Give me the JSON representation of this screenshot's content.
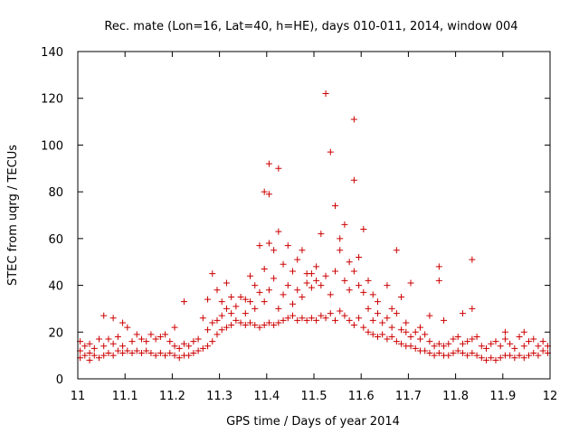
{
  "chart_data": {
    "type": "scatter",
    "title": "Rec. mate (Lon=16, Lat=40, h=HE), days 010-011, 2014, window 004",
    "xlabel": "GPS time / Days of year 2014",
    "ylabel": "STEC from uqrg / TECUs",
    "xlim": [
      11,
      12
    ],
    "ylim": [
      0,
      140
    ],
    "x_ticks": [
      "11",
      "11.1",
      "11.2",
      "11.3",
      "11.4",
      "11.5",
      "11.6",
      "11.7",
      "11.8",
      "11.9",
      "12"
    ],
    "y_ticks": [
      "0",
      "20",
      "40",
      "60",
      "80",
      "100",
      "120",
      "140"
    ],
    "marker": "+",
    "marker_color": "#cc0000",
    "grid": false,
    "legend": "none",
    "series": [
      {
        "name": "STEC",
        "points": [
          [
            11.005,
            9
          ],
          [
            11.005,
            12
          ],
          [
            11.005,
            16
          ],
          [
            11.015,
            10
          ],
          [
            11.015,
            14
          ],
          [
            11.025,
            8
          ],
          [
            11.025,
            11
          ],
          [
            11.025,
            15
          ],
          [
            11.035,
            10
          ],
          [
            11.035,
            13
          ],
          [
            11.045,
            9
          ],
          [
            11.045,
            17
          ],
          [
            11.055,
            10
          ],
          [
            11.055,
            14
          ],
          [
            11.055,
            27
          ],
          [
            11.065,
            11
          ],
          [
            11.065,
            17
          ],
          [
            11.075,
            10
          ],
          [
            11.075,
            15
          ],
          [
            11.075,
            26
          ],
          [
            11.085,
            12
          ],
          [
            11.085,
            18
          ],
          [
            11.095,
            11
          ],
          [
            11.095,
            14
          ],
          [
            11.095,
            24
          ],
          [
            11.105,
            12
          ],
          [
            11.105,
            22
          ],
          [
            11.115,
            11
          ],
          [
            11.115,
            16
          ],
          [
            11.125,
            12
          ],
          [
            11.125,
            19
          ],
          [
            11.135,
            11
          ],
          [
            11.135,
            17
          ],
          [
            11.145,
            12
          ],
          [
            11.145,
            16
          ],
          [
            11.155,
            11
          ],
          [
            11.155,
            19
          ],
          [
            11.165,
            10
          ],
          [
            11.165,
            17
          ],
          [
            11.175,
            11
          ],
          [
            11.175,
            18
          ],
          [
            11.185,
            10
          ],
          [
            11.185,
            19
          ],
          [
            11.195,
            11
          ],
          [
            11.195,
            16
          ],
          [
            11.205,
            10
          ],
          [
            11.205,
            14
          ],
          [
            11.205,
            22
          ],
          [
            11.215,
            9
          ],
          [
            11.215,
            13
          ],
          [
            11.225,
            10
          ],
          [
            11.225,
            15
          ],
          [
            11.225,
            33
          ],
          [
            11.235,
            10
          ],
          [
            11.235,
            14
          ],
          [
            11.245,
            11
          ],
          [
            11.245,
            16
          ],
          [
            11.255,
            12
          ],
          [
            11.255,
            17
          ],
          [
            11.265,
            13
          ],
          [
            11.265,
            26
          ],
          [
            11.275,
            14
          ],
          [
            11.275,
            21
          ],
          [
            11.275,
            34
          ],
          [
            11.285,
            16
          ],
          [
            11.285,
            24
          ],
          [
            11.285,
            45
          ],
          [
            11.295,
            19
          ],
          [
            11.295,
            25
          ],
          [
            11.295,
            38
          ],
          [
            11.305,
            21
          ],
          [
            11.305,
            27
          ],
          [
            11.305,
            33
          ],
          [
            11.315,
            22
          ],
          [
            11.315,
            30
          ],
          [
            11.315,
            41
          ],
          [
            11.325,
            23
          ],
          [
            11.325,
            28
          ],
          [
            11.325,
            35
          ],
          [
            11.335,
            25
          ],
          [
            11.335,
            31
          ],
          [
            11.345,
            24
          ],
          [
            11.345,
            35
          ],
          [
            11.355,
            23
          ],
          [
            11.355,
            28
          ],
          [
            11.355,
            34
          ],
          [
            11.365,
            24
          ],
          [
            11.365,
            33
          ],
          [
            11.365,
            44
          ],
          [
            11.375,
            23
          ],
          [
            11.375,
            30
          ],
          [
            11.375,
            40
          ],
          [
            11.385,
            22
          ],
          [
            11.385,
            37
          ],
          [
            11.385,
            57
          ],
          [
            11.395,
            23
          ],
          [
            11.395,
            33
          ],
          [
            11.395,
            47
          ],
          [
            11.395,
            80
          ],
          [
            11.405,
            24
          ],
          [
            11.405,
            38
          ],
          [
            11.405,
            58
          ],
          [
            11.405,
            79
          ],
          [
            11.405,
            92
          ],
          [
            11.415,
            23
          ],
          [
            11.415,
            43
          ],
          [
            11.415,
            55
          ],
          [
            11.425,
            24
          ],
          [
            11.425,
            30
          ],
          [
            11.425,
            63
          ],
          [
            11.425,
            90
          ],
          [
            11.435,
            25
          ],
          [
            11.435,
            36
          ],
          [
            11.435,
            49
          ],
          [
            11.445,
            26
          ],
          [
            11.445,
            40
          ],
          [
            11.445,
            57
          ],
          [
            11.455,
            27
          ],
          [
            11.455,
            32
          ],
          [
            11.455,
            46
          ],
          [
            11.465,
            25
          ],
          [
            11.465,
            38
          ],
          [
            11.465,
            51
          ],
          [
            11.475,
            26
          ],
          [
            11.475,
            35
          ],
          [
            11.475,
            55
          ],
          [
            11.485,
            25
          ],
          [
            11.485,
            41
          ],
          [
            11.485,
            45
          ],
          [
            11.495,
            26
          ],
          [
            11.495,
            39
          ],
          [
            11.495,
            45
          ],
          [
            11.505,
            25
          ],
          [
            11.505,
            42
          ],
          [
            11.505,
            48
          ],
          [
            11.515,
            27
          ],
          [
            11.515,
            40
          ],
          [
            11.515,
            62
          ],
          [
            11.525,
            26
          ],
          [
            11.525,
            44
          ],
          [
            11.525,
            122
          ],
          [
            11.535,
            28
          ],
          [
            11.535,
            36
          ],
          [
            11.535,
            97
          ],
          [
            11.545,
            25
          ],
          [
            11.545,
            46
          ],
          [
            11.545,
            74
          ],
          [
            11.555,
            29
          ],
          [
            11.555,
            55
          ],
          [
            11.555,
            60
          ],
          [
            11.565,
            27
          ],
          [
            11.565,
            42
          ],
          [
            11.565,
            66
          ],
          [
            11.575,
            25
          ],
          [
            11.575,
            38
          ],
          [
            11.575,
            50
          ],
          [
            11.585,
            23
          ],
          [
            11.585,
            46
          ],
          [
            11.585,
            85
          ],
          [
            11.585,
            111
          ],
          [
            11.595,
            26
          ],
          [
            11.595,
            40
          ],
          [
            11.595,
            52
          ],
          [
            11.605,
            22
          ],
          [
            11.605,
            37
          ],
          [
            11.605,
            64
          ],
          [
            11.615,
            20
          ],
          [
            11.615,
            30
          ],
          [
            11.615,
            42
          ],
          [
            11.625,
            19
          ],
          [
            11.625,
            25
          ],
          [
            11.625,
            36
          ],
          [
            11.635,
            18
          ],
          [
            11.635,
            28
          ],
          [
            11.635,
            33
          ],
          [
            11.645,
            19
          ],
          [
            11.645,
            24
          ],
          [
            11.655,
            17
          ],
          [
            11.655,
            26
          ],
          [
            11.655,
            40
          ],
          [
            11.665,
            18
          ],
          [
            11.665,
            22
          ],
          [
            11.665,
            30
          ],
          [
            11.675,
            16
          ],
          [
            11.675,
            28
          ],
          [
            11.675,
            55
          ],
          [
            11.685,
            15
          ],
          [
            11.685,
            21
          ],
          [
            11.685,
            35
          ],
          [
            11.695,
            14
          ],
          [
            11.695,
            20
          ],
          [
            11.695,
            24
          ],
          [
            11.705,
            14
          ],
          [
            11.705,
            18
          ],
          [
            11.705,
            41
          ],
          [
            11.715,
            13
          ],
          [
            11.715,
            20
          ],
          [
            11.725,
            12
          ],
          [
            11.725,
            17
          ],
          [
            11.725,
            22
          ],
          [
            11.735,
            12
          ],
          [
            11.735,
            19
          ],
          [
            11.745,
            11
          ],
          [
            11.745,
            16
          ],
          [
            11.745,
            27
          ],
          [
            11.755,
            10
          ],
          [
            11.755,
            14
          ],
          [
            11.765,
            11
          ],
          [
            11.765,
            15
          ],
          [
            11.765,
            42
          ],
          [
            11.765,
            48
          ],
          [
            11.775,
            10
          ],
          [
            11.775,
            14
          ],
          [
            11.775,
            25
          ],
          [
            11.785,
            10
          ],
          [
            11.785,
            15
          ],
          [
            11.795,
            11
          ],
          [
            11.795,
            17
          ],
          [
            11.805,
            12
          ],
          [
            11.805,
            18
          ],
          [
            11.815,
            11
          ],
          [
            11.815,
            15
          ],
          [
            11.815,
            28
          ],
          [
            11.825,
            10
          ],
          [
            11.825,
            16
          ],
          [
            11.835,
            11
          ],
          [
            11.835,
            17
          ],
          [
            11.835,
            30
          ],
          [
            11.835,
            51
          ],
          [
            11.845,
            10
          ],
          [
            11.845,
            18
          ],
          [
            11.855,
            9
          ],
          [
            11.855,
            14
          ],
          [
            11.865,
            8
          ],
          [
            11.865,
            13
          ],
          [
            11.875,
            9
          ],
          [
            11.875,
            15
          ],
          [
            11.885,
            8
          ],
          [
            11.885,
            16
          ],
          [
            11.895,
            9
          ],
          [
            11.895,
            14
          ],
          [
            11.905,
            10
          ],
          [
            11.905,
            17
          ],
          [
            11.905,
            20
          ],
          [
            11.915,
            10
          ],
          [
            11.915,
            15
          ],
          [
            11.925,
            9
          ],
          [
            11.925,
            13
          ],
          [
            11.935,
            10
          ],
          [
            11.935,
            18
          ],
          [
            11.945,
            9
          ],
          [
            11.945,
            14
          ],
          [
            11.945,
            20
          ],
          [
            11.955,
            10
          ],
          [
            11.955,
            16
          ],
          [
            11.965,
            11
          ],
          [
            11.965,
            17
          ],
          [
            11.975,
            10
          ],
          [
            11.975,
            14
          ],
          [
            11.985,
            12
          ],
          [
            11.985,
            16
          ],
          [
            11.995,
            11
          ],
          [
            11.995,
            14
          ]
        ]
      }
    ]
  }
}
